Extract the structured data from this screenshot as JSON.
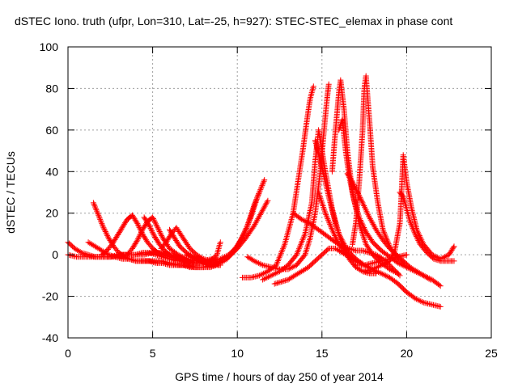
{
  "chart_data": {
    "type": "scatter",
    "title": "dSTEC Iono. truth (ufpr, Lon=310, Lat=-25, h=927): STEC-STEC_elemax in phase cont",
    "xlabel": "GPS time / hours of day 250 of year 2014",
    "ylabel": "dSTEC  / TECUs",
    "xlim": [
      0,
      25
    ],
    "ylim": [
      -40,
      100
    ],
    "x_ticks": [
      0,
      5,
      10,
      15,
      20,
      25
    ],
    "y_ticks": [
      -40,
      -20,
      0,
      20,
      40,
      60,
      80,
      100
    ],
    "grid": true,
    "marker": "+",
    "color": "#ff0000",
    "series": [
      {
        "x": [
          0.0,
          0.4,
          0.8,
          1.2,
          1.6,
          2.0,
          2.4,
          2.8,
          3.2,
          3.6,
          4.0,
          4.4,
          4.8,
          5.2,
          5.6,
          6.0,
          6.4,
          6.8,
          7.2,
          7.6,
          8.0,
          8.4,
          8.8,
          9.0
        ],
        "y": [
          6,
          3,
          1,
          0,
          -1,
          -1,
          -1,
          -1,
          0,
          0,
          0,
          1,
          1,
          0,
          -1,
          -2,
          -3,
          -3,
          -4,
          -4,
          -4,
          -3,
          0,
          6
        ]
      },
      {
        "x": [
          0.0,
          0.5,
          1.0,
          1.5,
          2.0,
          2.5,
          3.0,
          3.5,
          4.0,
          4.5,
          5.0,
          5.5,
          6.0,
          6.5,
          7.0,
          7.5,
          8.0,
          8.5
        ],
        "y": [
          0,
          -1,
          -1,
          -1,
          -1,
          -1,
          0,
          0,
          0,
          0,
          1,
          1,
          0,
          -1,
          -2,
          -3,
          -3,
          -2
        ]
      },
      {
        "x": [
          1.2,
          1.6,
          2.0,
          2.4,
          2.8,
          3.2,
          3.6,
          4.0,
          4.4,
          4.8,
          5.2,
          5.6,
          6.0,
          6.4,
          6.8,
          7.2,
          7.6,
          8.0,
          8.4,
          8.8,
          9.0
        ],
        "y": [
          6,
          4,
          2,
          0,
          -1,
          -2,
          -2,
          -3,
          -3,
          -3,
          -4,
          -4,
          -5,
          -5,
          -5,
          -6,
          -6,
          -6,
          -6,
          -5,
          -5
        ]
      },
      {
        "x": [
          1.5,
          1.8,
          2.1,
          2.4,
          2.7,
          3.0,
          3.3,
          3.6,
          4.0,
          4.5,
          5.0,
          5.5,
          6.0,
          6.5,
          7.0,
          7.5,
          8.0,
          8.5,
          9.0
        ],
        "y": [
          25,
          19,
          13,
          8,
          4,
          1,
          -1,
          -2,
          -3,
          -3,
          -3,
          -3,
          -4,
          -5,
          -5,
          -6,
          -6,
          -5,
          -3
        ]
      },
      {
        "x": [
          2.0,
          2.3,
          2.6,
          2.9,
          3.2,
          3.5,
          3.8,
          4.1,
          4.4,
          4.7,
          5.0,
          5.3,
          5.6,
          6.0,
          6.5,
          7.0,
          7.5,
          8.0,
          8.5
        ],
        "y": [
          0,
          2,
          5,
          9,
          13,
          17,
          19,
          15,
          10,
          6,
          3,
          1,
          0,
          -1,
          -2,
          -3,
          -4,
          -4,
          -3
        ]
      },
      {
        "x": [
          3.5,
          3.8,
          4.1,
          4.4,
          4.7,
          5.0,
          5.3,
          5.6,
          6.0,
          6.5,
          7.0,
          7.5,
          8.0,
          8.5
        ],
        "y": [
          0,
          3,
          7,
          12,
          16,
          18,
          13,
          8,
          3,
          0,
          -2,
          -3,
          -3,
          -3
        ]
      },
      {
        "x": [
          4.5,
          4.8,
          5.1,
          5.4,
          5.7,
          6.0,
          6.3,
          6.6,
          7.0,
          7.5,
          8.0,
          8.5
        ],
        "y": [
          18,
          14,
          9,
          5,
          2,
          0,
          -1,
          -2,
          -3,
          -4,
          -4,
          -3
        ]
      },
      {
        "x": [
          5.5,
          5.8,
          6.1,
          6.4,
          6.8,
          7.2,
          7.6,
          8.0,
          8.4,
          8.8
        ],
        "y": [
          3,
          6,
          10,
          13,
          8,
          3,
          0,
          -2,
          -3,
          -2
        ]
      },
      {
        "x": [
          6.0,
          6.3,
          6.6,
          7.0,
          7.4,
          7.8,
          8.2,
          8.6,
          9.0,
          9.4,
          9.8,
          10.2,
          10.6,
          11.0,
          11.3
        ],
        "y": [
          12,
          8,
          4,
          1,
          -1,
          -3,
          -4,
          -5,
          -4,
          -2,
          2,
          7,
          14,
          24,
          30
        ]
      },
      {
        "x": [
          7.0,
          7.5,
          8.0,
          8.5,
          9.0,
          9.5,
          10.0,
          10.4,
          10.8,
          11.2,
          11.6
        ],
        "y": [
          0,
          -2,
          -3,
          -3,
          -2,
          0,
          4,
          10,
          18,
          28,
          36
        ]
      },
      {
        "x": [
          7.5,
          8.0,
          8.5,
          9.0,
          9.5,
          10.0,
          10.5,
          11.0,
          11.4,
          11.8
        ],
        "y": [
          -2,
          -3,
          -4,
          -3,
          -1,
          3,
          8,
          14,
          20,
          26
        ]
      },
      {
        "x": [
          10.3,
          10.8,
          11.3,
          11.8,
          12.3,
          12.8,
          13.3,
          13.6,
          13.9,
          14.1,
          14.3,
          14.5
        ],
        "y": [
          -11,
          -11,
          -10,
          -8,
          -5,
          5,
          20,
          36,
          52,
          64,
          75,
          81
        ]
      },
      {
        "x": [
          10.6,
          11.0,
          11.5,
          12.0,
          12.5,
          13.0,
          13.5,
          14.0,
          14.3,
          14.6,
          14.9,
          15.1,
          15.3,
          15.4
        ],
        "y": [
          -1,
          -3,
          -5,
          -6,
          -7,
          -7,
          -5,
          0,
          8,
          20,
          40,
          58,
          75,
          82
        ]
      },
      {
        "x": [
          11.5,
          12.0,
          12.5,
          13.0,
          13.5,
          14.0,
          14.4,
          14.6,
          14.8,
          15.2,
          15.6,
          16.0,
          16.5,
          17.0,
          17.5
        ],
        "y": [
          -12,
          -10,
          -8,
          -5,
          0,
          10,
          25,
          45,
          60,
          40,
          22,
          10,
          2,
          -2,
          -5
        ]
      },
      {
        "x": [
          12.2,
          12.6,
          13.0,
          13.4,
          13.8,
          14.2,
          14.6,
          15.0,
          15.4,
          15.8,
          16.2,
          16.6,
          17.0,
          17.5,
          18.0
        ],
        "y": [
          -14,
          -13,
          -12,
          -10,
          -8,
          -6,
          -3,
          0,
          3,
          3,
          1,
          -1,
          -3,
          -5,
          -7
        ]
      },
      {
        "x": [
          13.3,
          13.8,
          14.3,
          14.8,
          15.3,
          15.8,
          16.2,
          16.6,
          17.0,
          17.4,
          17.8,
          18.2,
          18.6,
          19.0,
          19.6
        ],
        "y": [
          20,
          17,
          15,
          12,
          9,
          6,
          4,
          3,
          2,
          2,
          1,
          0,
          -2,
          -5,
          -10
        ]
      },
      {
        "x": [
          14.6,
          15.0,
          15.4,
          15.8,
          16.2,
          16.6,
          17.0,
          17.4,
          17.8,
          18.2
        ],
        "y": [
          55,
          42,
          28,
          15,
          5,
          -2,
          -6,
          -8,
          -9,
          -9
        ]
      },
      {
        "x": [
          14.8,
          15.2,
          15.6,
          16.0,
          16.5,
          17.0,
          17.5,
          18.0,
          18.5,
          19.0,
          19.5,
          20.0,
          20.5,
          21.0,
          21.5,
          22.0
        ],
        "y": [
          30,
          20,
          12,
          5,
          0,
          -3,
          -5,
          -7,
          -9,
          -11,
          -14,
          -18,
          -21,
          -23,
          -24,
          -25
        ]
      },
      {
        "x": [
          15.6,
          15.8,
          16.0,
          16.1,
          16.3,
          16.5,
          16.8,
          17.2,
          17.6,
          18.0,
          18.5,
          19.0,
          19.5
        ],
        "y": [
          40,
          60,
          78,
          84,
          70,
          50,
          30,
          15,
          5,
          0,
          -4,
          -7,
          -9
        ]
      },
      {
        "x": [
          16.0,
          16.2,
          16.4,
          16.6,
          16.9,
          17.2,
          17.6,
          18.0,
          18.5,
          19.0,
          19.5,
          20.0,
          20.5,
          21.0,
          21.5,
          22.0
        ],
        "y": [
          60,
          65,
          50,
          38,
          26,
          18,
          11,
          6,
          2,
          -1,
          -4,
          -6,
          -8,
          -10,
          -12,
          -15
        ]
      },
      {
        "x": [
          16.5,
          16.8,
          17.1,
          17.4,
          17.8,
          18.2,
          18.6,
          19.0,
          19.4,
          19.8,
          20.2,
          20.6,
          21.0,
          21.4
        ],
        "y": [
          39,
          35,
          30,
          25,
          18,
          12,
          7,
          3,
          0,
          -3,
          -6,
          -8,
          -10,
          -12
        ]
      },
      {
        "x": [
          16.8,
          17.0,
          17.2,
          17.4,
          17.5,
          17.6,
          17.8,
          18.0,
          18.3,
          18.6,
          19.0,
          19.4,
          19.8
        ],
        "y": [
          5,
          15,
          35,
          60,
          80,
          86,
          65,
          42,
          25,
          12,
          4,
          -1,
          -4
        ]
      },
      {
        "x": [
          17.0,
          17.5,
          18.0,
          18.5,
          19.0,
          19.5,
          20.0
        ],
        "y": [
          -5,
          -5,
          -4,
          -3,
          -2,
          -1,
          0
        ]
      },
      {
        "x": [
          17.5,
          18.0,
          18.5,
          19.0,
          19.3,
          19.6,
          19.7,
          19.8,
          20.0,
          20.3,
          20.6,
          21.0,
          21.5,
          22.0,
          22.5,
          22.8
        ],
        "y": [
          -8,
          -7,
          -5,
          -3,
          2,
          15,
          30,
          48,
          35,
          22,
          12,
          5,
          0,
          -2,
          0,
          4
        ]
      },
      {
        "x": [
          19.6,
          19.8,
          20.0,
          20.2,
          20.5,
          20.8,
          21.2,
          21.6,
          22.0,
          22.4,
          22.8
        ],
        "y": [
          30,
          28,
          22,
          16,
          10,
          5,
          1,
          -2,
          -3,
          -3,
          -3
        ]
      }
    ]
  }
}
